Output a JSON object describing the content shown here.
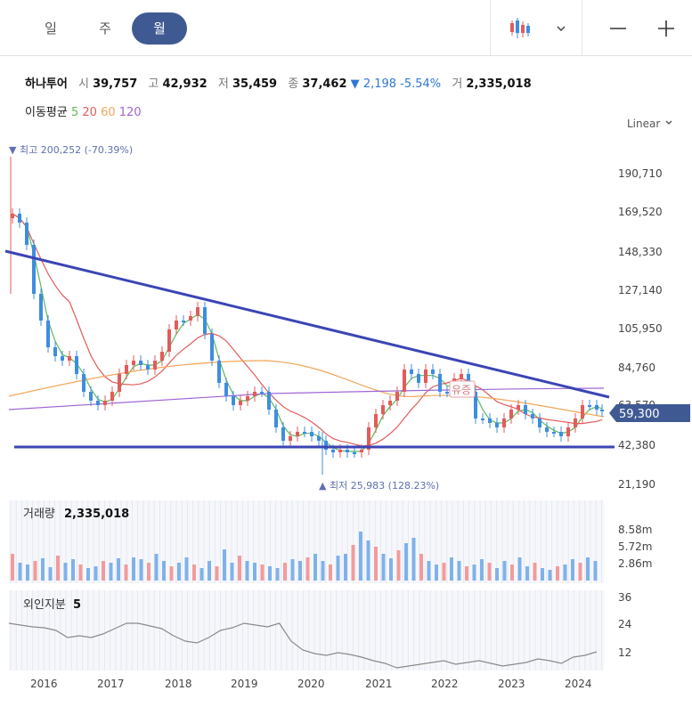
{
  "tabs": [
    {
      "label": "일",
      "active": false
    },
    {
      "label": "주",
      "active": false
    },
    {
      "label": "월",
      "active": true
    }
  ],
  "toolbar": {
    "chart_type_icon": "candlestick-icon",
    "dropdown_icon": "chevron-down-icon",
    "zoom_out_icon": "minus-icon",
    "zoom_in_icon": "plus-icon"
  },
  "stock": {
    "name": "하나투어",
    "open_label": "시",
    "open": "39,757",
    "high_label": "고",
    "high": "42,932",
    "low_label": "저",
    "low": "35,459",
    "close_label": "종",
    "close": "37,462",
    "change_arrow": "▼",
    "change": "2,198",
    "change_pct": "-5.54%",
    "volume_label": "거",
    "volume": "2,335,018"
  },
  "ma_legend": {
    "label": "이동평균",
    "periods": [
      "5",
      "20",
      "60",
      "120"
    ]
  },
  "scale": "Linear",
  "chart_data": {
    "type": "candlestick",
    "price_axis_ticks": [
      "190,710",
      "169,520",
      "148,330",
      "127,140",
      "105,950",
      "84,760",
      "63,570",
      "42,380",
      "21,190"
    ],
    "current_price": "59,300",
    "max_label": "▼ 최고 200,252 (-70.39%)",
    "min_label": "▲ 최저 25,983 (128.23%)",
    "annotation": "유증",
    "x_ticks": [
      "2016",
      "2017",
      "2018",
      "2019",
      "2020",
      "2021",
      "2022",
      "2023",
      "2024"
    ],
    "volume": {
      "label": "거래량",
      "value": "2,335,018",
      "ticks": [
        "8.58m",
        "5.72m",
        "2.86m"
      ]
    },
    "foreign": {
      "label": "외인지분",
      "value": "5",
      "ticks": [
        "36",
        "24",
        "12"
      ]
    },
    "ma_colors": {
      "ma5": "#5cb85c",
      "ma20": "#e35b5b",
      "ma60": "#f2a65a",
      "ma120": "#a066d6"
    },
    "up_color": "#e35b5b",
    "down_color": "#3d8de0",
    "trendline_color": "#3b45b5"
  }
}
